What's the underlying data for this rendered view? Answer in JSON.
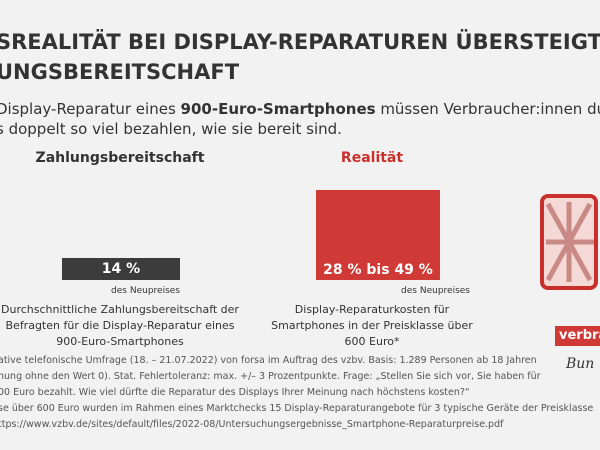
{
  "header": {
    "title": [
      "SREALITÄT BEI DISPLAY-REPARATUREN ÜBERSTEIGT",
      "UNGSBEREITSCHAFT"
    ],
    "subtitle": {
      "line1": [
        "Display-Reparatur eines ",
        "900-Euro-Smartphones",
        " müssen Verbraucher:innen durchschn"
      ],
      "line2": "s doppelt so viel bezahlen, wie sie bereit sind."
    }
  },
  "columns": [
    {
      "heading": "Zahlungsbereitschaft",
      "bar_label": "14 %",
      "unit": "des Neupreises",
      "description": [
        "Durchschnittliche Zahlungsbereitschaft der",
        "Befragten für die Display-Reparatur eines",
        "900-Euro-Smartphones"
      ]
    },
    {
      "heading": "Realität",
      "bar_label": "28 % bis 49 %",
      "unit": "des Neupreises",
      "description": [
        "Display-Reparaturkosten für",
        "Smartphones in der Preisklasse über",
        "600 Euro*"
      ]
    }
  ],
  "logo": {
    "name": "verbra",
    "sub": "Bun"
  },
  "footer": [
    "ative telefonische Umfrage (18. – 21.07.2022) von forsa im Auftrag des vzbv. Basis: 1.289 Personen ab 18 Jahren",
    "nung ohne den Wert 0). Stat. Fehlertoleranz: max. +/– 3 Prozentpunkte. Frage: „Stellen Sie sich vor, Sie haben für",
    "00 Euro bezahlt. Wie viel dürfte die Reparatur des Displays Ihrer Meinung nach höchstens kosten?“",
    "se über 600 Euro wurden im Rahmen eines Marktchecks 15 Display-Reparaturangebote für 3 typische Geräte der Preisklasse",
    "ttps://www.vzbv.de/sites/default/files/2022-08/Untersuchungsergebnisse_Smartphone-Reparaturpreise.pdf"
  ]
}
